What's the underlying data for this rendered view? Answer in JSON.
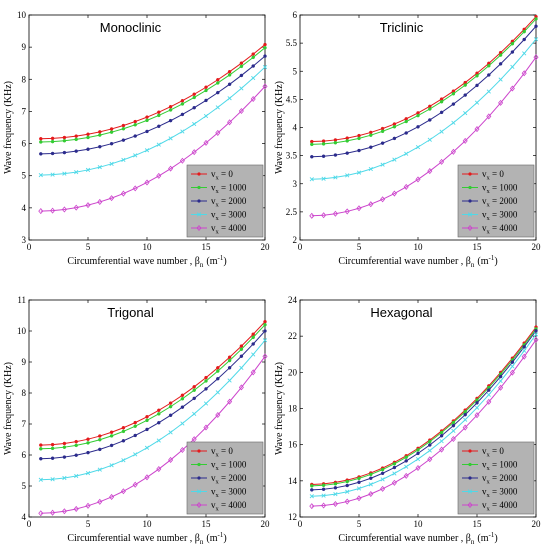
{
  "chart_data": [
    {
      "type": "line",
      "title": "Monoclinic",
      "xlabel": "Circumferential wave number , β",
      "xlabel_sub": "n",
      "xlabel_unit": "(m",
      "xlabel_unit_sup": "-1",
      "xlabel_unit_close": ")",
      "ylabel": "Wave frequency (KHz)",
      "xlim": [
        0,
        20
      ],
      "ylim": [
        3,
        10
      ],
      "xticks": [
        "0",
        "5",
        "10",
        "15",
        "20"
      ],
      "yticks": [
        "3",
        "4",
        "5",
        "6",
        "7",
        "8",
        "9",
        "10"
      ],
      "legend_position": "bottom-right",
      "series": [
        {
          "name": "0",
          "color": "#e41a1c",
          "marker": "circle",
          "start": 6.15,
          "end": 9.08
        },
        {
          "name": "1000",
          "color": "#33cc33",
          "marker": "circle",
          "start": 6.05,
          "end": 8.98
        },
        {
          "name": "2000",
          "color": "#2b2b8c",
          "marker": "circle",
          "start": 5.68,
          "end": 8.72
        },
        {
          "name": "3000",
          "color": "#4fd9e8",
          "marker": "x",
          "start": 5.02,
          "end": 8.38
        },
        {
          "name": "4000",
          "color": "#cc44cc",
          "marker": "diamond",
          "start": 3.9,
          "end": 7.78
        }
      ]
    },
    {
      "type": "line",
      "title": "Triclinic",
      "xlabel": "Circumferential wave number , β",
      "xlabel_sub": "n",
      "xlabel_unit": "(m",
      "xlabel_unit_sup": "-1",
      "xlabel_unit_close": ")",
      "ylabel": "Wave frequency (KHz)",
      "xlim": [
        0,
        20
      ],
      "ylim": [
        2,
        6
      ],
      "xticks": [
        "0",
        "5",
        "10",
        "15",
        "20"
      ],
      "yticks": [
        "2",
        "2.5",
        "3",
        "3.5",
        "4",
        "4.5",
        "5",
        "5.5",
        "6"
      ],
      "legend_position": "bottom-right",
      "series": [
        {
          "name": "0",
          "color": "#e41a1c",
          "marker": "circle",
          "start": 3.75,
          "end": 5.97
        },
        {
          "name": "1000",
          "color": "#33cc33",
          "marker": "circle",
          "start": 3.7,
          "end": 5.93
        },
        {
          "name": "2000",
          "color": "#2b2b8c",
          "marker": "circle",
          "start": 3.48,
          "end": 5.8
        },
        {
          "name": "3000",
          "color": "#4fd9e8",
          "marker": "x",
          "start": 3.08,
          "end": 5.57
        },
        {
          "name": "4000",
          "color": "#cc44cc",
          "marker": "diamond",
          "start": 2.43,
          "end": 5.25
        }
      ]
    },
    {
      "type": "line",
      "title": "Trigonal",
      "xlabel": "Circumferential wave number , β",
      "xlabel_sub": "n",
      "xlabel_unit": "(m",
      "xlabel_unit_sup": "-1",
      "xlabel_unit_close": ")",
      "ylabel": "Wave frequency (KHz)",
      "xlim": [
        0,
        20
      ],
      "ylim": [
        4,
        11
      ],
      "xticks": [
        "0",
        "5",
        "10",
        "15",
        "20"
      ],
      "yticks": [
        "4",
        "5",
        "6",
        "7",
        "8",
        "9",
        "10",
        "11"
      ],
      "legend_position": "bottom-right",
      "series": [
        {
          "name": "0",
          "color": "#e41a1c",
          "marker": "circle",
          "start": 6.32,
          "end": 10.3
        },
        {
          "name": "1000",
          "color": "#33cc33",
          "marker": "circle",
          "start": 6.2,
          "end": 10.2
        },
        {
          "name": "2000",
          "color": "#2b2b8c",
          "marker": "circle",
          "start": 5.88,
          "end": 10.0
        },
        {
          "name": "3000",
          "color": "#4fd9e8",
          "marker": "x",
          "start": 5.2,
          "end": 9.7
        },
        {
          "name": "4000",
          "color": "#cc44cc",
          "marker": "diamond",
          "start": 4.12,
          "end": 9.18
        }
      ]
    },
    {
      "type": "line",
      "title": "Hexagonal",
      "xlabel": "Circumferential wave number , β",
      "xlabel_sub": "n",
      "xlabel_unit": "(m",
      "xlabel_unit_sup": "-1",
      "xlabel_unit_close": ")",
      "ylabel": "Wave frequency (KHz)",
      "xlim": [
        0,
        20
      ],
      "ylim": [
        12,
        24
      ],
      "xticks": [
        "0",
        "5",
        "10",
        "15",
        "20"
      ],
      "yticks": [
        "12",
        "14",
        "16",
        "18",
        "20",
        "22",
        "24"
      ],
      "legend_position": "bottom-right",
      "series": [
        {
          "name": "0",
          "color": "#e41a1c",
          "marker": "circle",
          "start": 13.8,
          "end": 22.5
        },
        {
          "name": "1000",
          "color": "#33cc33",
          "marker": "circle",
          "start": 13.72,
          "end": 22.4
        },
        {
          "name": "2000",
          "color": "#2b2b8c",
          "marker": "circle",
          "start": 13.5,
          "end": 22.3
        },
        {
          "name": "3000",
          "color": "#4fd9e8",
          "marker": "x",
          "start": 13.15,
          "end": 22.1
        },
        {
          "name": "4000",
          "color": "#cc44cc",
          "marker": "diamond",
          "start": 12.6,
          "end": 21.8
        }
      ]
    }
  ],
  "legend": {
    "symbol": "v",
    "subscript": "x",
    "equals": " = "
  }
}
